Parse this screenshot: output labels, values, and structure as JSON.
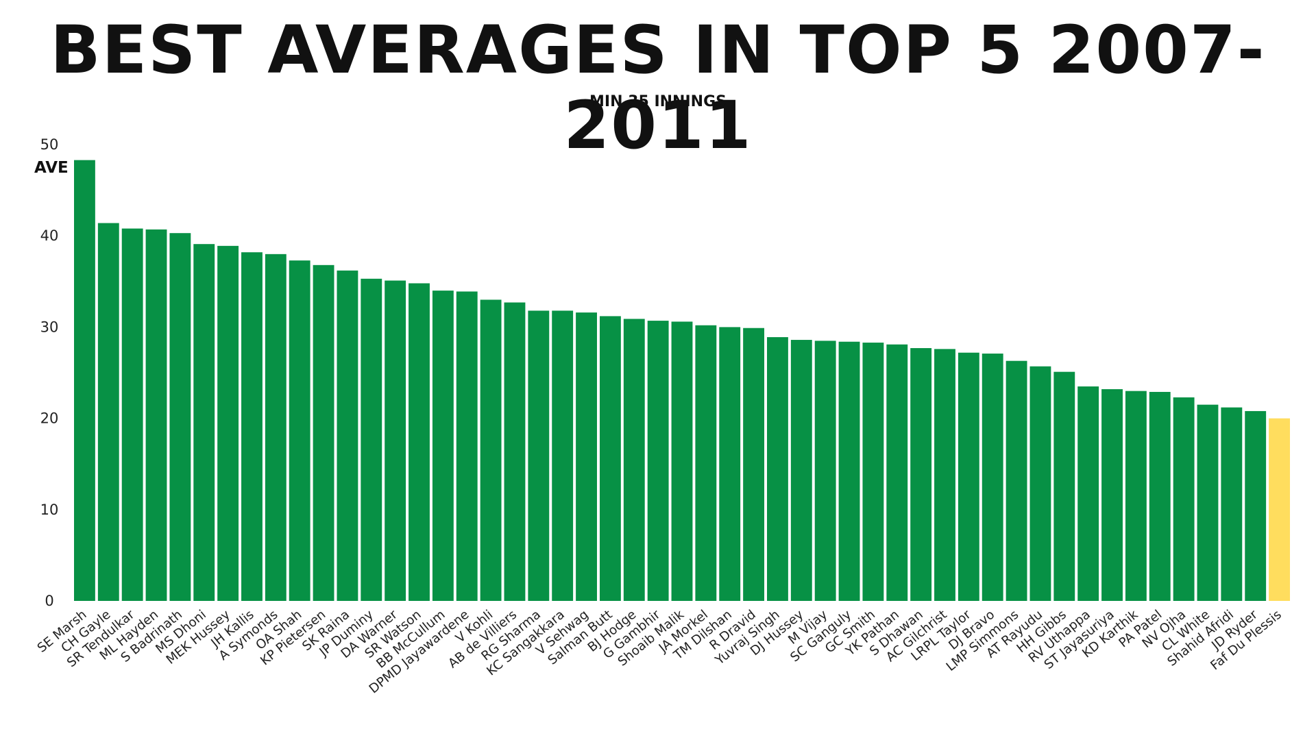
{
  "chart_data": {
    "type": "bar",
    "title": "BEST AVERAGES IN TOP 5 2007-2011",
    "subtitle": "MIN 35 INNINGS",
    "ylabel": "AVE",
    "xlabel": "",
    "ylim": [
      0,
      50
    ],
    "yticks": [
      0,
      10,
      20,
      30,
      40,
      50
    ],
    "grid": false,
    "colors": {
      "default": "#079145",
      "highlight": "#FFDD5E"
    },
    "highlight_category": "Faf Du Plessis",
    "categories": [
      "SE Marsh",
      "CH Gayle",
      "SR Tendulkar",
      "ML Hayden",
      "S Badrinath",
      "MS Dhoni",
      "MEK Hussey",
      "JH Kallis",
      "A Symonds",
      "OA Shah",
      "KP Pietersen",
      "SK Raina",
      "JP Duminy",
      "DA Warner",
      "SR Watson",
      "BB McCullum",
      "DPMD Jayawardene",
      "V Kohli",
      "AB de Villiers",
      "RG Sharma",
      "KC Sangakkara",
      "V Sehwag",
      "Salman Butt",
      "BJ Hodge",
      "G Gambhir",
      "Shoaib Malik",
      "JA Morkel",
      "TM Dilshan",
      "R Dravid",
      "Yuvraj Singh",
      "DJ Hussey",
      "M Vijay",
      "SC Ganguly",
      "GC Smith",
      "YK Pathan",
      "S Dhawan",
      "AC Gilchrist",
      "LRPL Taylor",
      "DJ Bravo",
      "LMP Simmons",
      "AT Rayudu",
      "HH Gibbs",
      "RV Uthappa",
      "ST Jayasuriya",
      "KD Karthik",
      "PA Patel",
      "NV Ojha",
      "CL White",
      "Shahid Afridi",
      "JD Ryder",
      "Faf Du Plessis"
    ],
    "values": [
      48.3,
      41.4,
      40.8,
      40.7,
      40.3,
      39.1,
      38.9,
      38.2,
      38.0,
      37.3,
      36.8,
      36.2,
      35.3,
      35.1,
      34.8,
      34.0,
      33.9,
      33.0,
      32.7,
      31.8,
      31.8,
      31.6,
      31.2,
      30.9,
      30.7,
      30.6,
      30.2,
      30.0,
      29.9,
      28.9,
      28.6,
      28.5,
      28.4,
      28.3,
      28.1,
      27.7,
      27.6,
      27.2,
      27.1,
      26.3,
      25.7,
      25.1,
      23.5,
      23.2,
      23.0,
      22.9,
      22.3,
      21.5,
      21.2,
      20.8,
      20.0
    ]
  }
}
